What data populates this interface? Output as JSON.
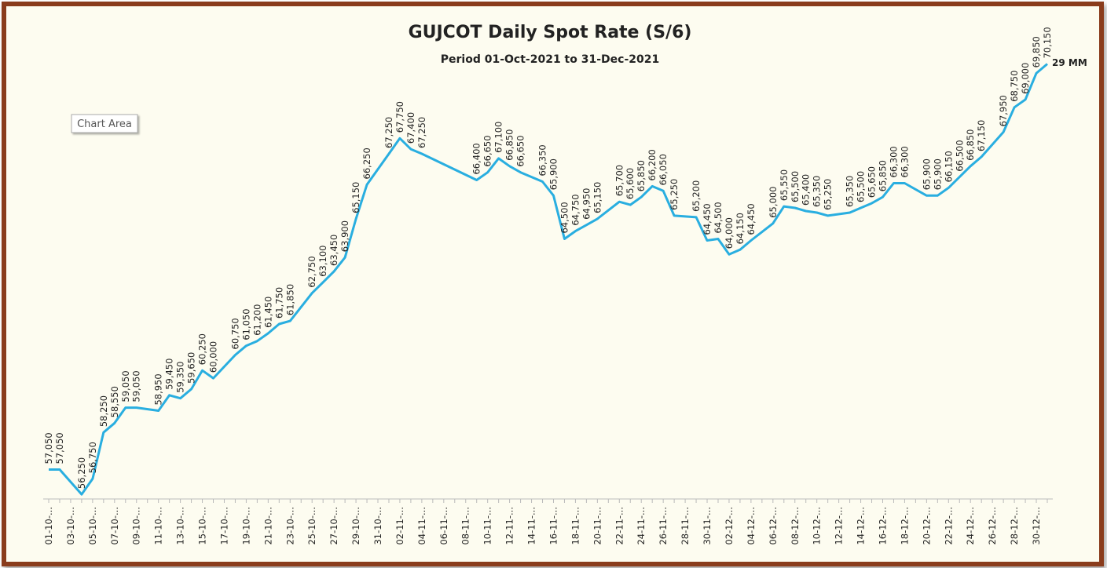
{
  "chart_data": {
    "type": "line",
    "title": "GUJCOT Daily Spot Rate (S/6)",
    "subtitle": "Period 01-Oct-2021 to 31-Dec-2021",
    "annotation": "29 MM",
    "tooltip": "Chart Area",
    "connect_gaps": true,
    "ylim": [
      56100,
      71000
    ],
    "categories": [
      "01-10-...",
      null,
      "03-10-...",
      null,
      "05-10-...",
      null,
      "07-10-...",
      null,
      "09-10-...",
      null,
      "11-10-...",
      null,
      "13-10-...",
      null,
      "15-10-...",
      null,
      "17-10-...",
      null,
      "19-10-...",
      null,
      "21-10-...",
      null,
      "23-10-...",
      null,
      "25-10-...",
      null,
      "27-10-...",
      null,
      "29-10-...",
      null,
      "31-10-...",
      null,
      "02-11-...",
      null,
      "04-11-...",
      null,
      "06-11-...",
      null,
      "08-11-...",
      null,
      "10-11-...",
      null,
      "12-11-...",
      null,
      "14-11-...",
      null,
      "16-11-...",
      null,
      "18-11-...",
      null,
      "20-11-...",
      null,
      "22-11-...",
      null,
      "24-11-...",
      null,
      "26-11-...",
      null,
      "28-11-...",
      null,
      "30-11-...",
      null,
      "02-12-...",
      null,
      "04-12-...",
      null,
      "06-12-...",
      null,
      "08-12-...",
      null,
      "10-12-...",
      null,
      "12-12-...",
      null,
      "14-12-...",
      null,
      "16-12-...",
      null,
      "18-12-...",
      null,
      "20-12-...",
      null,
      "22-12-...",
      null,
      "24-12-...",
      null,
      "26-12-...",
      null,
      "28-12-...",
      null,
      "30-12-...",
      null
    ],
    "series": [
      {
        "name": "Spot Rate",
        "color": "#29aee0",
        "values": [
          57050,
          57050,
          null,
          56250,
          56750,
          58250,
          58550,
          59050,
          59050,
          null,
          58950,
          59450,
          59350,
          59650,
          60250,
          60000,
          null,
          60750,
          61050,
          61200,
          61450,
          61750,
          61850,
          null,
          62750,
          63100,
          63450,
          63900,
          65150,
          66250,
          null,
          67250,
          67750,
          67400,
          67250,
          null,
          null,
          null,
          null,
          66400,
          66650,
          67100,
          66850,
          66650,
          null,
          66350,
          65900,
          64500,
          64750,
          64950,
          65150,
          null,
          65700,
          65600,
          65850,
          66200,
          66050,
          65250,
          null,
          65200,
          64450,
          64500,
          64000,
          64150,
          64450,
          null,
          65000,
          65550,
          65500,
          65400,
          65350,
          65250,
          null,
          65350,
          65500,
          65650,
          65850,
          66300,
          66300,
          null,
          65900,
          65900,
          66150,
          66500,
          66850,
          67150,
          null,
          67950,
          68750,
          69000,
          69850,
          70150
        ],
        "value_labels": [
          "57,050",
          "57,050",
          null,
          "56,250",
          "56,750",
          "58,250",
          "58,550",
          "59,050",
          "59,050",
          null,
          "58,950",
          "59,450",
          "59,350",
          "59,650",
          "60,250",
          "60,000",
          null,
          "60,750",
          "61,050",
          "61,200",
          "61,450",
          "61,750",
          "61,850",
          null,
          "62,750",
          "63,100",
          "63,450",
          "63,900",
          "65,150",
          "66,250",
          null,
          "67,250",
          "67,750",
          "67,400",
          "67,250",
          null,
          null,
          null,
          null,
          "66,400",
          "66,650",
          "67,100",
          "66,850",
          "66,650",
          null,
          "66,350",
          "65,900",
          "64,500",
          "64,750",
          "64,950",
          "65,150",
          null,
          "65,700",
          "65,600",
          "65,850",
          "66,200",
          "66,050",
          "65,250",
          null,
          "65,200",
          "64,450",
          "64,500",
          "64,000",
          "64,150",
          "64,450",
          null,
          "65,000",
          "65,550",
          "65,500",
          "65,400",
          "65,350",
          "65,250",
          null,
          "65,350",
          "65,500",
          "65,650",
          "65,850",
          "66,300",
          "66,300",
          null,
          "65,900",
          "65,900",
          "66,150",
          "66,500",
          "66,850",
          "67,150",
          null,
          "67,950",
          "68,750",
          "69,000",
          "69,850",
          "70,150"
        ]
      }
    ]
  }
}
